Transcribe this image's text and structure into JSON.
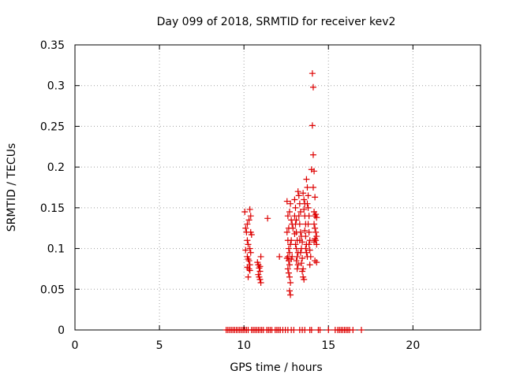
{
  "chart_data": {
    "type": "scatter",
    "title": "Day 099 of 2018, SRMTID for receiver kev2",
    "xlabel": "GPS time / hours",
    "ylabel": "SRMTID / TECUs",
    "xlim": [
      0,
      24
    ],
    "ylim": [
      0,
      0.35
    ],
    "xticks": [
      0,
      5,
      10,
      15,
      20
    ],
    "xtick_labels": [
      "0",
      "5",
      "10",
      "15",
      "20"
    ],
    "yticks": [
      0,
      0.05,
      0.1,
      0.15,
      0.2,
      0.25,
      0.3,
      0.35
    ],
    "ytick_labels": [
      "0",
      "0.05",
      "0.1",
      "0.15",
      "0.2",
      "0.25",
      "0.3",
      "0.35"
    ],
    "grid": true,
    "marker": "+",
    "color": "#dd0000",
    "series": [
      {
        "name": "SRMTID",
        "points": [
          [
            8.95,
            0
          ],
          [
            9.05,
            0
          ],
          [
            9.15,
            0
          ],
          [
            9.25,
            0
          ],
          [
            9.35,
            0
          ],
          [
            9.45,
            0
          ],
          [
            9.55,
            0
          ],
          [
            9.65,
            0
          ],
          [
            9.75,
            0
          ],
          [
            9.85,
            0
          ],
          [
            9.95,
            0
          ],
          [
            10.05,
            0
          ],
          [
            10.15,
            0
          ],
          [
            10.25,
            0
          ],
          [
            10.45,
            0
          ],
          [
            10.55,
            0
          ],
          [
            10.65,
            0
          ],
          [
            10.75,
            0
          ],
          [
            10.85,
            0
          ],
          [
            10.95,
            0
          ],
          [
            11.05,
            0
          ],
          [
            11.15,
            0
          ],
          [
            11.35,
            0
          ],
          [
            11.45,
            0
          ],
          [
            11.55,
            0
          ],
          [
            11.65,
            0
          ],
          [
            11.85,
            0
          ],
          [
            11.95,
            0
          ],
          [
            12.05,
            0
          ],
          [
            12.15,
            0
          ],
          [
            12.3,
            0
          ],
          [
            12.45,
            0
          ],
          [
            12.6,
            0
          ],
          [
            12.8,
            0
          ],
          [
            12.95,
            0
          ],
          [
            13.3,
            0
          ],
          [
            13.45,
            0
          ],
          [
            13.6,
            0
          ],
          [
            13.9,
            0
          ],
          [
            14.0,
            0
          ],
          [
            14.4,
            0
          ],
          [
            14.5,
            0
          ],
          [
            15.0,
            0
          ],
          [
            15.4,
            0
          ],
          [
            15.55,
            0
          ],
          [
            15.65,
            0
          ],
          [
            15.75,
            0
          ],
          [
            15.85,
            0
          ],
          [
            15.95,
            0
          ],
          [
            16.05,
            0
          ],
          [
            16.15,
            0
          ],
          [
            16.25,
            0
          ],
          [
            16.45,
            0
          ],
          [
            16.95,
            0
          ],
          [
            10.05,
            0.145
          ],
          [
            10.1,
            0.125
          ],
          [
            10.15,
            0.12
          ],
          [
            10.2,
            0.11
          ],
          [
            10.25,
            0.105
          ],
          [
            10.1,
            0.098
          ],
          [
            10.2,
            0.09
          ],
          [
            10.25,
            0.087
          ],
          [
            10.3,
            0.085
          ],
          [
            10.35,
            0.08
          ],
          [
            10.2,
            0.077
          ],
          [
            10.3,
            0.075
          ],
          [
            10.35,
            0.073
          ],
          [
            10.25,
            0.065
          ],
          [
            10.35,
            0.148
          ],
          [
            10.4,
            0.14
          ],
          [
            10.3,
            0.135
          ],
          [
            10.4,
            0.12
          ],
          [
            10.45,
            0.117
          ],
          [
            10.35,
            0.1
          ],
          [
            10.4,
            0.095
          ],
          [
            10.2,
            0.13
          ],
          [
            10.8,
            0.083
          ],
          [
            10.85,
            0.08
          ],
          [
            10.9,
            0.076
          ],
          [
            10.95,
            0.072
          ],
          [
            10.85,
            0.068
          ],
          [
            10.9,
            0.065
          ],
          [
            10.95,
            0.062
          ],
          [
            11.0,
            0.058
          ],
          [
            11.0,
            0.09
          ],
          [
            10.95,
            0.078
          ],
          [
            11.4,
            0.137
          ],
          [
            12.1,
            0.09
          ],
          [
            12.55,
            0.158
          ],
          [
            12.6,
            0.14
          ],
          [
            12.65,
            0.125
          ],
          [
            12.55,
            0.12
          ],
          [
            12.6,
            0.11
          ],
          [
            12.65,
            0.1
          ],
          [
            12.7,
            0.095
          ],
          [
            12.6,
            0.09
          ],
          [
            12.55,
            0.088
          ],
          [
            12.65,
            0.085
          ],
          [
            12.7,
            0.08
          ],
          [
            12.6,
            0.075
          ],
          [
            12.65,
            0.07
          ],
          [
            12.7,
            0.065
          ],
          [
            12.75,
            0.058
          ],
          [
            12.7,
            0.048
          ],
          [
            12.75,
            0.043
          ],
          [
            12.75,
            0.155
          ],
          [
            12.8,
            0.135
          ],
          [
            12.8,
            0.11
          ],
          [
            12.75,
            0.105
          ],
          [
            12.85,
            0.09
          ],
          [
            12.8,
            0.087
          ],
          [
            12.7,
            0.145
          ],
          [
            12.85,
            0.13
          ],
          [
            12.9,
            0.125
          ],
          [
            13.0,
            0.16
          ],
          [
            13.05,
            0.15
          ],
          [
            13.0,
            0.14
          ],
          [
            13.1,
            0.135
          ],
          [
            13.05,
            0.13
          ],
          [
            13.1,
            0.12
          ],
          [
            13.0,
            0.118
          ],
          [
            13.15,
            0.11
          ],
          [
            13.05,
            0.105
          ],
          [
            13.1,
            0.1
          ],
          [
            13.2,
            0.095
          ],
          [
            13.15,
            0.09
          ],
          [
            13.1,
            0.085
          ],
          [
            13.2,
            0.08
          ],
          [
            13.15,
            0.075
          ],
          [
            13.2,
            0.17
          ],
          [
            13.25,
            0.165
          ],
          [
            13.3,
            0.155
          ],
          [
            13.35,
            0.145
          ],
          [
            13.25,
            0.14
          ],
          [
            13.3,
            0.13
          ],
          [
            13.35,
            0.12
          ],
          [
            13.4,
            0.115
          ],
          [
            13.3,
            0.11
          ],
          [
            13.45,
            0.108
          ],
          [
            13.4,
            0.1
          ],
          [
            13.35,
            0.095
          ],
          [
            13.45,
            0.088
          ],
          [
            13.4,
            0.082
          ],
          [
            13.5,
            0.075
          ],
          [
            13.45,
            0.072
          ],
          [
            13.5,
            0.065
          ],
          [
            13.55,
            0.062
          ],
          [
            13.5,
            0.168
          ],
          [
            13.55,
            0.16
          ],
          [
            13.6,
            0.155
          ],
          [
            13.55,
            0.148
          ],
          [
            13.6,
            0.14
          ],
          [
            13.65,
            0.13
          ],
          [
            13.6,
            0.122
          ],
          [
            13.65,
            0.115
          ],
          [
            13.7,
            0.105
          ],
          [
            13.65,
            0.1
          ],
          [
            13.7,
            0.095
          ],
          [
            13.75,
            0.09
          ],
          [
            13.7,
            0.185
          ],
          [
            13.75,
            0.175
          ],
          [
            13.8,
            0.165
          ],
          [
            13.75,
            0.155
          ],
          [
            13.8,
            0.15
          ],
          [
            13.85,
            0.14
          ],
          [
            13.8,
            0.13
          ],
          [
            13.85,
            0.12
          ],
          [
            13.9,
            0.11
          ],
          [
            13.85,
            0.105
          ],
          [
            13.9,
            0.098
          ],
          [
            13.95,
            0.09
          ],
          [
            13.9,
            0.08
          ],
          [
            14.05,
            0.315
          ],
          [
            14.1,
            0.298
          ],
          [
            14.05,
            0.251
          ],
          [
            14.1,
            0.215
          ],
          [
            14.0,
            0.197
          ],
          [
            14.15,
            0.195
          ],
          [
            14.1,
            0.175
          ],
          [
            14.2,
            0.163
          ],
          [
            14.15,
            0.145
          ],
          [
            14.25,
            0.142
          ],
          [
            14.2,
            0.14
          ],
          [
            14.3,
            0.138
          ],
          [
            14.15,
            0.13
          ],
          [
            14.2,
            0.125
          ],
          [
            14.25,
            0.12
          ],
          [
            14.3,
            0.115
          ],
          [
            14.2,
            0.112
          ],
          [
            14.25,
            0.11
          ],
          [
            14.15,
            0.108
          ],
          [
            14.3,
            0.105
          ],
          [
            14.2,
            0.085
          ],
          [
            14.3,
            0.083
          ]
        ]
      }
    ]
  }
}
